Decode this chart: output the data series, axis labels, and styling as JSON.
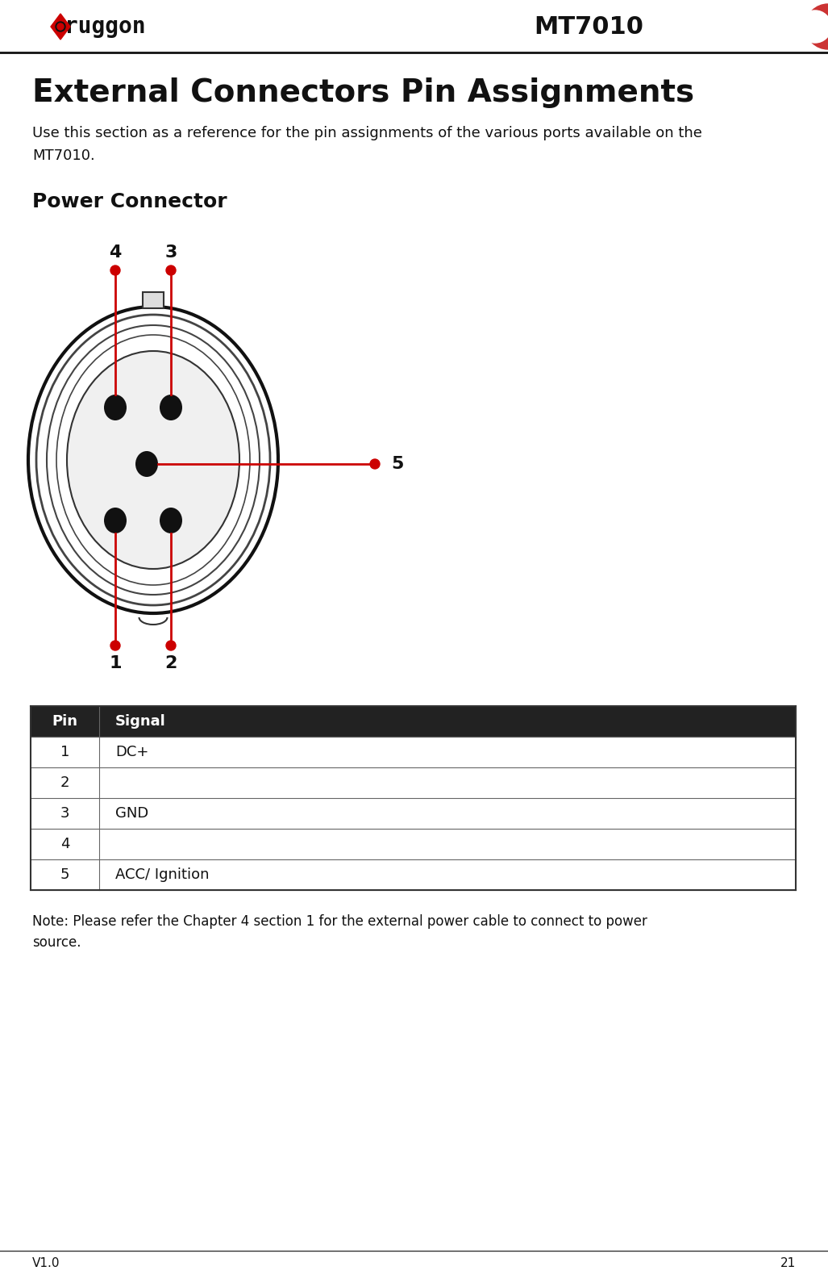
{
  "page_title": "MT7010",
  "version": "V1.0",
  "page_number": "21",
  "main_heading": "External Connectors Pin Assignments",
  "intro_text": "Use this section as a reference for the pin assignments of the various ports available on the MT7010.",
  "section_heading": "Power Connector",
  "table_header": [
    "Pin",
    "Signal"
  ],
  "table_rows": [
    [
      "1",
      "DC+"
    ],
    [
      "2",
      ""
    ],
    [
      "3",
      "GND"
    ],
    [
      "4",
      ""
    ],
    [
      "5",
      "ACC/ Ignition"
    ]
  ],
  "note_text": "Note: Please refer the Chapter 4 section 1 for the external power cable to connect to power source.",
  "red_color": "#cc0000",
  "background_color": "#ffffff",
  "table_header_bg": "#222222",
  "figw": 10.27,
  "figh": 15.85,
  "dpi": 100
}
